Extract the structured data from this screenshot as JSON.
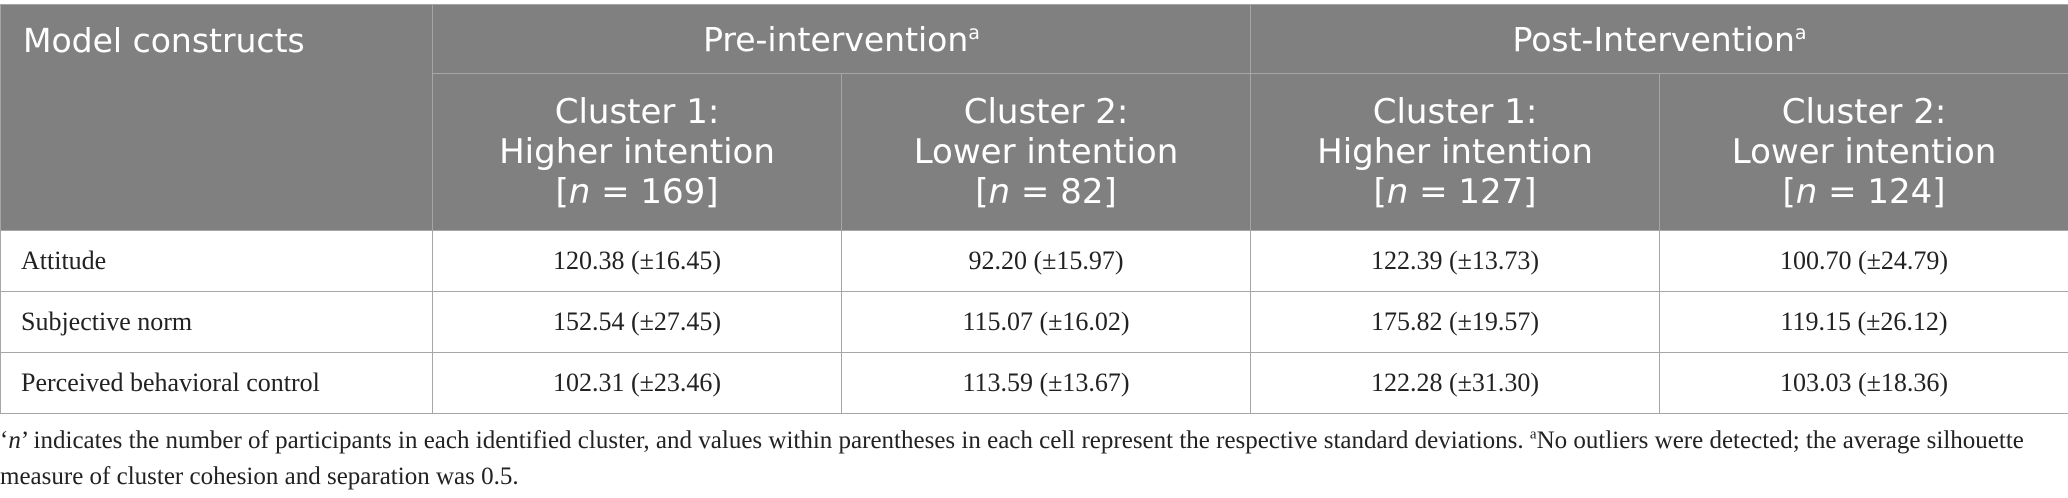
{
  "header": {
    "construct_label": "Model constructs",
    "pre_label": "Pre-intervention",
    "post_label": "Post-Intervention",
    "superscript": "a",
    "clusters": [
      {
        "line1": "Cluster 1:",
        "line2": "Higher intention",
        "n_prefix": "[",
        "n_var": "n",
        "n_suffix": " = 169]"
      },
      {
        "line1": "Cluster 2:",
        "line2": "Lower intention",
        "n_prefix": "[",
        "n_var": "n",
        "n_suffix": " = 82]"
      },
      {
        "line1": "Cluster 1:",
        "line2": "Higher intention",
        "n_prefix": "[",
        "n_var": "n",
        "n_suffix": " = 127]"
      },
      {
        "line1": "Cluster 2:",
        "line2": "Lower intention",
        "n_prefix": "[",
        "n_var": "n",
        "n_suffix": " = 124]"
      }
    ]
  },
  "rows": [
    {
      "label": "Attitude",
      "values": [
        "120.38 (±16.45)",
        "92.20 (±15.97)",
        "122.39 (±13.73)",
        "100.70 (±24.79)"
      ]
    },
    {
      "label": "Subjective norm",
      "values": [
        "152.54 (±27.45)",
        "115.07 (±16.02)",
        "175.82 (±19.57)",
        "119.15 (±26.12)"
      ]
    },
    {
      "label": "Perceived behavioral control",
      "values": [
        "102.31 (±23.46)",
        "113.59 (±13.67)",
        "122.28 (±31.30)",
        "103.03 (±18.36)"
      ]
    }
  ],
  "footnote": {
    "part1_open": "‘",
    "part1_var": "n",
    "part1_rest": "’ indicates the number of participants in each identified cluster, and values within parentheses in each cell represent the respective standard deviations. ",
    "sup": "a",
    "part2": "No outliers were detected; the average silhouette measure of cluster cohesion and separation was 0.5."
  }
}
